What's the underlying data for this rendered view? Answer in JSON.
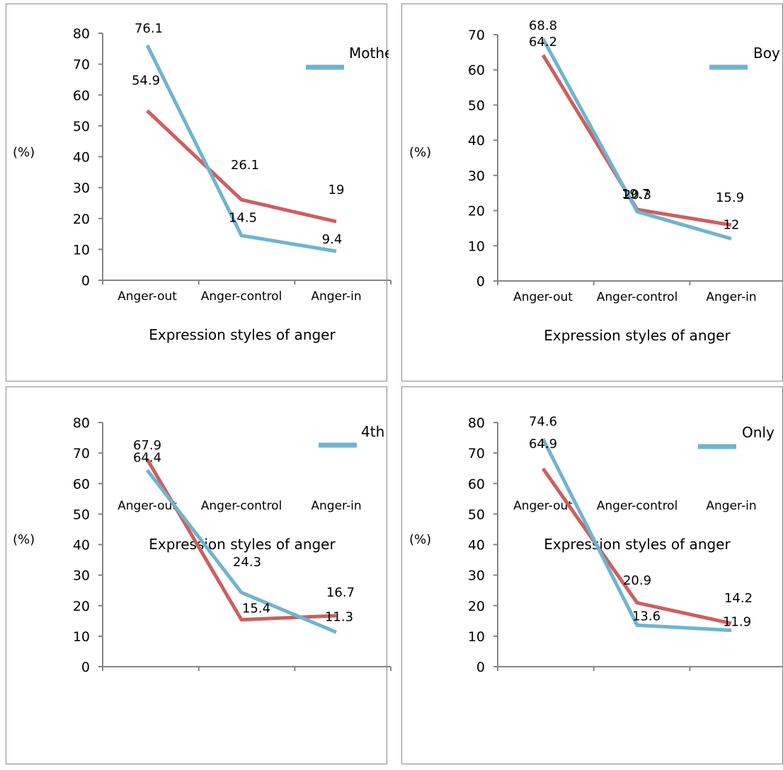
{
  "colors": {
    "blue": "#6fb4cf",
    "red": "#cd5f5f",
    "axis": "#858585",
    "frame": "#8a8a8a"
  },
  "chart_data": [
    {
      "type": "line",
      "categories": [
        "Anger-out",
        "Anger-control",
        "Anger-in"
      ],
      "xlabel": "Expression styles of anger",
      "ylabel": "(%)",
      "ylim": [
        0,
        80
      ],
      "yticks": [
        0,
        10,
        20,
        30,
        40,
        50,
        60,
        70,
        80
      ],
      "grid": false,
      "legend": "top-right",
      "legend_text": "Mothe",
      "series": [
        {
          "name": "",
          "color": "blue",
          "values": [
            76.1,
            14.5,
            9.4
          ]
        },
        {
          "name": "",
          "color": "red",
          "values": [
            54.9,
            26.1,
            19
          ]
        }
      ]
    },
    {
      "type": "line",
      "categories": [
        "Anger-out",
        "Anger-control",
        "Anger-in"
      ],
      "xlabel": "Expression styles of anger",
      "ylabel": "(%)",
      "ylim": [
        0,
        70
      ],
      "yticks": [
        0,
        10,
        20,
        30,
        40,
        50,
        60,
        70
      ],
      "grid": false,
      "legend": "top-right",
      "legend_text": "Boy",
      "series": [
        {
          "name": "",
          "color": "blue",
          "values": [
            68.8,
            19.7,
            12
          ]
        },
        {
          "name": "",
          "color": "red",
          "values": [
            64.2,
            20.3,
            15.9
          ]
        }
      ]
    },
    {
      "type": "line",
      "categories": [
        "Anger-out",
        "Anger-control",
        "Anger-in"
      ],
      "xlabel": "Expression styles of anger",
      "ylabel": "(%)",
      "ylim": [
        0,
        80
      ],
      "yticks": [
        0,
        10,
        20,
        30,
        40,
        50,
        60,
        70,
        80
      ],
      "grid": false,
      "legend": "top-right",
      "legend_text": "4th",
      "series": [
        {
          "name": "",
          "color": "blue",
          "values": [
            64.4,
            24.3,
            11.3
          ]
        },
        {
          "name": "",
          "color": "red",
          "values": [
            67.9,
            15.4,
            16.7
          ]
        }
      ]
    },
    {
      "type": "line",
      "categories": [
        "Anger-out",
        "Anger-control",
        "Anger-in"
      ],
      "xlabel": "Expression styles of anger",
      "ylabel": "(%)",
      "ylim": [
        0,
        80
      ],
      "yticks": [
        0,
        10,
        20,
        30,
        40,
        50,
        60,
        70,
        80
      ],
      "grid": false,
      "legend": "top-right",
      "legend_text": "Only",
      "series": [
        {
          "name": "",
          "color": "blue",
          "values": [
            74.6,
            13.6,
            11.9
          ]
        },
        {
          "name": "",
          "color": "red",
          "values": [
            64.9,
            20.9,
            14.2
          ]
        }
      ]
    }
  ]
}
